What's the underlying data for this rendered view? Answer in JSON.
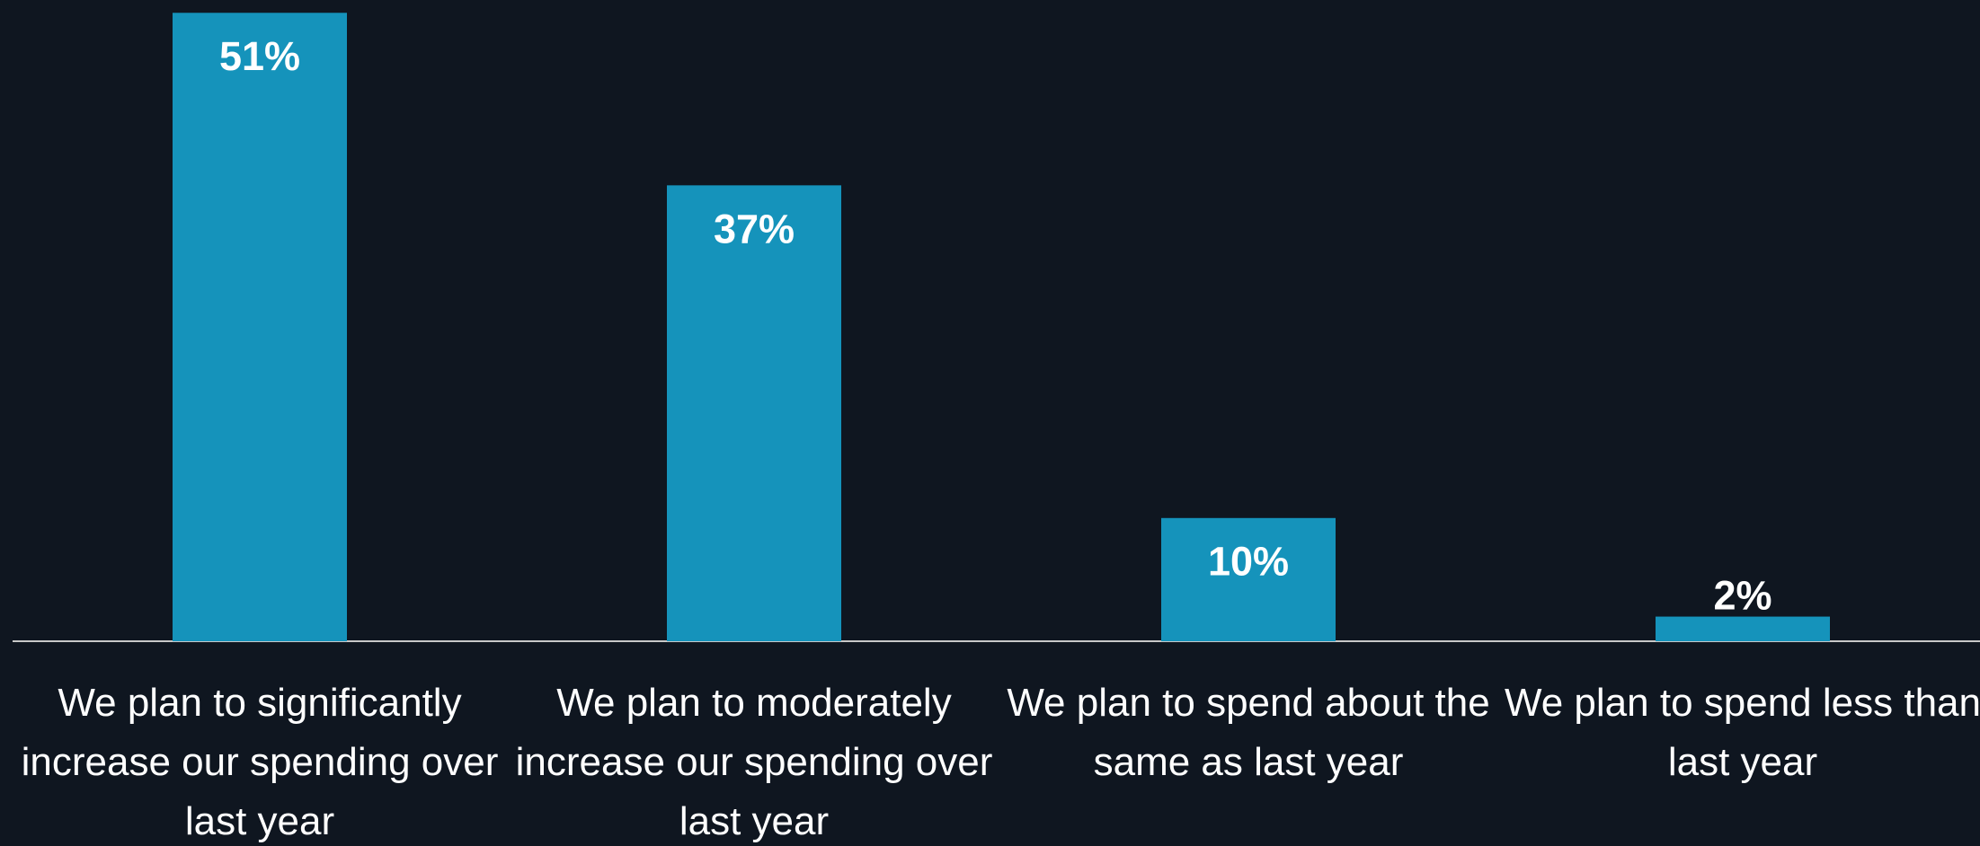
{
  "chart_data": {
    "type": "bar",
    "categories": [
      "We plan to significantly increase our spending over last year",
      "We plan to moderately increase our spending over last year",
      "We plan to spend about the same as last year",
      "We plan to spend less than last year"
    ],
    "values": [
      51,
      37,
      10,
      2
    ],
    "value_labels": [
      "51%",
      "37%",
      "10%",
      "2%"
    ],
    "color": "#1593bb"
  }
}
